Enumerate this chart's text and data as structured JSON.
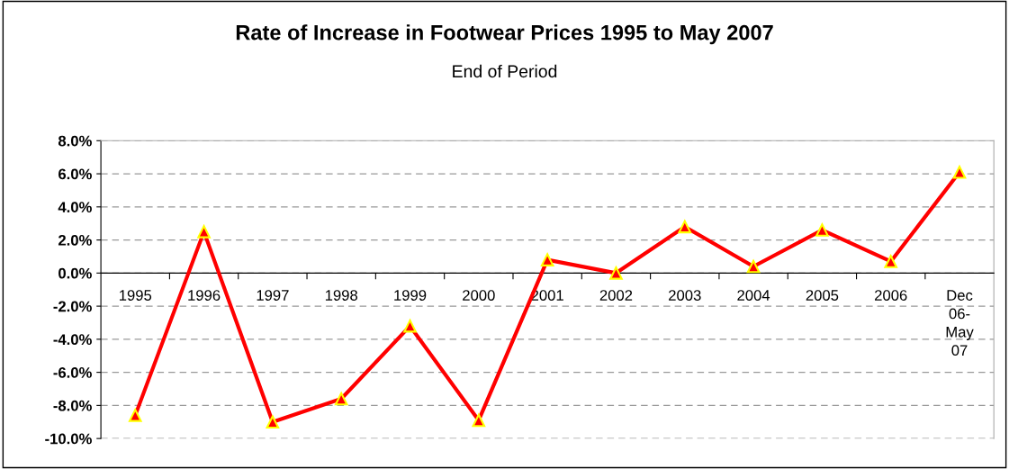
{
  "chart_data": {
    "type": "line",
    "title": "Rate of Increase in Footwear Prices 1995 to May 2007",
    "subtitle": "End of Period",
    "categories": [
      "1995",
      "1996",
      "1997",
      "1998",
      "1999",
      "2000",
      "2001",
      "2002",
      "2003",
      "2004",
      "2005",
      "2006",
      "Dec\n06-\nMay\n07"
    ],
    "series": [
      {
        "color": "#ff0000",
        "values": [
          -8.6,
          2.5,
          -9.0,
          -7.6,
          -3.2,
          -8.9,
          0.8,
          0.0,
          2.8,
          0.4,
          2.6,
          0.7,
          6.1
        ]
      }
    ],
    "ylim": [
      -10,
      8
    ],
    "yticks": [
      {
        "value": -10,
        "label": "-10.0%"
      },
      {
        "value": -8,
        "label": "-8.0%"
      },
      {
        "value": -6,
        "label": "-6.0%"
      },
      {
        "value": -4,
        "label": "-4.0%"
      },
      {
        "value": -2,
        "label": "-2.0%"
      },
      {
        "value": 0,
        "label": "0.0%"
      },
      {
        "value": 2,
        "label": "2.0%"
      },
      {
        "value": 4,
        "label": "4.0%"
      },
      {
        "value": 6,
        "label": "6.0%"
      },
      {
        "value": 8,
        "label": "8.0%"
      }
    ],
    "grid": "y",
    "marker": "triangle",
    "line_style": "solid",
    "legend": false
  }
}
